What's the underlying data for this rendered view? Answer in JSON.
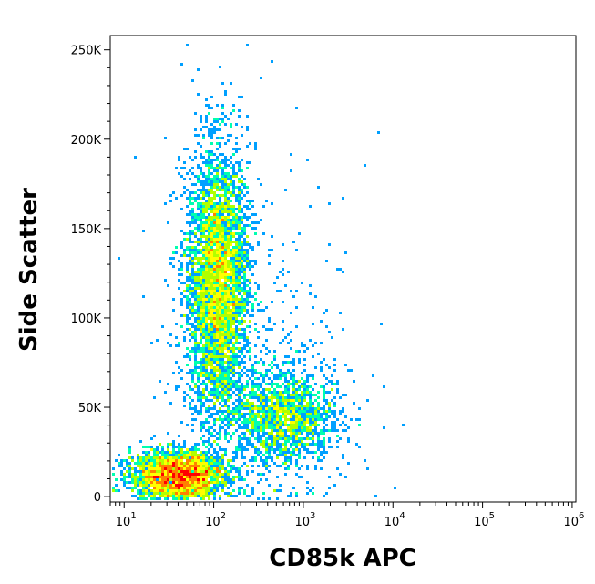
{
  "chart_data": {
    "type": "scatter",
    "title": "",
    "xlabel": "CD85k APC",
    "ylabel": "Side Scatter",
    "x_scale": "log",
    "xlim": [
      7,
      1100000
    ],
    "ylim": [
      -3000,
      258000
    ],
    "x_ticks": [
      {
        "value": 10,
        "base": "10",
        "exp": "1"
      },
      {
        "value": 100,
        "base": "10",
        "exp": "2"
      },
      {
        "value": 1000,
        "base": "10",
        "exp": "3"
      },
      {
        "value": 10000,
        "base": "10",
        "exp": "4"
      },
      {
        "value": 100000,
        "base": "10",
        "exp": "5"
      },
      {
        "value": 1000000,
        "base": "10",
        "exp": "6"
      }
    ],
    "y_ticks": [
      {
        "value": 0,
        "label": "0"
      },
      {
        "value": 50000,
        "label": "50K"
      },
      {
        "value": 100000,
        "label": "100K"
      },
      {
        "value": 150000,
        "label": "150K"
      },
      {
        "value": 200000,
        "label": "200K"
      },
      {
        "value": 250000,
        "label": "250K"
      }
    ],
    "grid": false,
    "colormap": [
      "#0000ff",
      "#00a0ff",
      "#00ffb0",
      "#b0ff00",
      "#ffff00",
      "#ff8000",
      "#ff0000"
    ],
    "populations": [
      {
        "x_center": 110,
        "y_center": 120000,
        "x_spread_decades": 0.17,
        "y_spread": 38000,
        "count": 4500
      },
      {
        "x_center": 40,
        "y_center": 12000,
        "x_spread_decades": 0.26,
        "y_spread": 7000,
        "count": 3200
      },
      {
        "x_center": 600,
        "y_center": 45000,
        "x_spread_decades": 0.3,
        "y_spread": 13000,
        "count": 1700
      },
      {
        "x_center": 300,
        "y_center": 80000,
        "x_spread_decades": 0.55,
        "y_spread": 60000,
        "count": 420
      }
    ]
  }
}
